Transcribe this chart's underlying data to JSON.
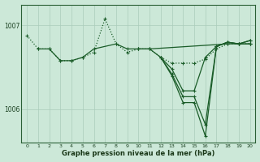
{
  "bg_color": "#cce8d8",
  "grid_color": "#aaccbb",
  "line_color": "#1a5c28",
  "xlabel": "Graphe pression niveau de la mer (hPa)",
  "xlim": [
    -0.5,
    20.5
  ],
  "ylim": [
    1005.6,
    1007.25
  ],
  "yticks": [
    1006,
    1007
  ],
  "xticks": [
    0,
    1,
    2,
    3,
    4,
    5,
    6,
    7,
    8,
    9,
    10,
    11,
    12,
    13,
    14,
    15,
    16,
    17,
    18,
    19,
    20
  ],
  "s1_x": [
    0,
    1,
    2,
    3,
    4,
    5,
    6,
    7,
    8,
    9,
    10,
    11,
    12,
    13,
    14,
    15,
    16,
    17,
    18,
    19,
    20
  ],
  "s1_y": [
    1006.88,
    1006.72,
    1006.72,
    1006.58,
    1006.58,
    1006.62,
    1006.68,
    1007.08,
    1006.78,
    1006.68,
    1006.72,
    1006.72,
    1006.62,
    1006.55,
    1006.55,
    1006.55,
    1006.6,
    1006.72,
    1006.78,
    1006.78,
    1006.78
  ],
  "s2_x": [
    1,
    2,
    3,
    4,
    5,
    6,
    8,
    9,
    10,
    11,
    18,
    19,
    20
  ],
  "s2_y": [
    1006.72,
    1006.72,
    1006.58,
    1006.58,
    1006.62,
    1006.72,
    1006.78,
    1006.72,
    1006.72,
    1006.72,
    1006.78,
    1006.78,
    1006.78
  ],
  "s3_x": [
    10,
    11,
    12,
    13,
    14,
    15,
    16,
    17,
    18,
    19,
    20
  ],
  "s3_y": [
    1006.72,
    1006.72,
    1006.62,
    1006.48,
    1006.22,
    1006.22,
    1006.62,
    1006.75,
    1006.8,
    1006.78,
    1006.78
  ],
  "s4_x": [
    12,
    13,
    14,
    15,
    16,
    17,
    18,
    19,
    20
  ],
  "s4_y": [
    1006.62,
    1006.42,
    1006.15,
    1006.15,
    1005.82,
    1006.75,
    1006.8,
    1006.78,
    1006.82
  ],
  "s5_x": [
    12,
    13,
    14,
    15,
    16,
    17,
    18,
    19,
    20
  ],
  "s5_y": [
    1006.62,
    1006.4,
    1006.08,
    1006.08,
    1005.68,
    1006.75,
    1006.8,
    1006.78,
    1006.82
  ]
}
